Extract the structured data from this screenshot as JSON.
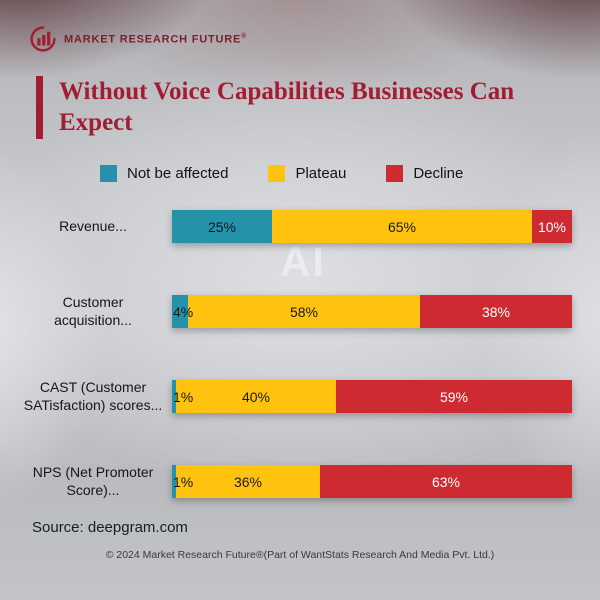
{
  "brand": {
    "logo_text": "MARKET RESEARCH FUTURE",
    "registered": "®"
  },
  "title": "Without Voice Capabilities Businesses Can Expect",
  "legend": [
    {
      "label": "Not be affected",
      "color": "#2493a9"
    },
    {
      "label": "Plateau",
      "color": "#ffc20e"
    },
    {
      "label": "Decline",
      "color": "#cd2b31"
    }
  ],
  "chart_data": {
    "type": "bar",
    "orientation": "horizontal",
    "stacked": true,
    "title": "Without Voice Capabilities Businesses Can Expect",
    "categories": [
      "Revenue...",
      "Customer\nacquisition...",
      "CAST (Customer\nSATisfaction) scores...",
      "NPS (Net Promoter\nScore)..."
    ],
    "series": [
      {
        "name": "Not be affected",
        "color": "#2493a9",
        "label_color": "#10181b",
        "values": [
          25,
          4,
          1,
          1
        ]
      },
      {
        "name": "Plateau",
        "color": "#ffc20e",
        "label_color": "#1a1a1a",
        "values": [
          65,
          58,
          40,
          36
        ]
      },
      {
        "name": "Decline",
        "color": "#cd2b31",
        "label_color": "#ffffff",
        "values": [
          10,
          38,
          59,
          63
        ]
      }
    ],
    "value_suffix": "%",
    "xlim": [
      0,
      100
    ],
    "legend_position": "top",
    "grid": false
  },
  "watermark": "AI",
  "source": "Source: deepgram.com",
  "footer": "© 2024 Market Research Future®(Part of WantStats Research And Media Pvt. Ltd.)"
}
